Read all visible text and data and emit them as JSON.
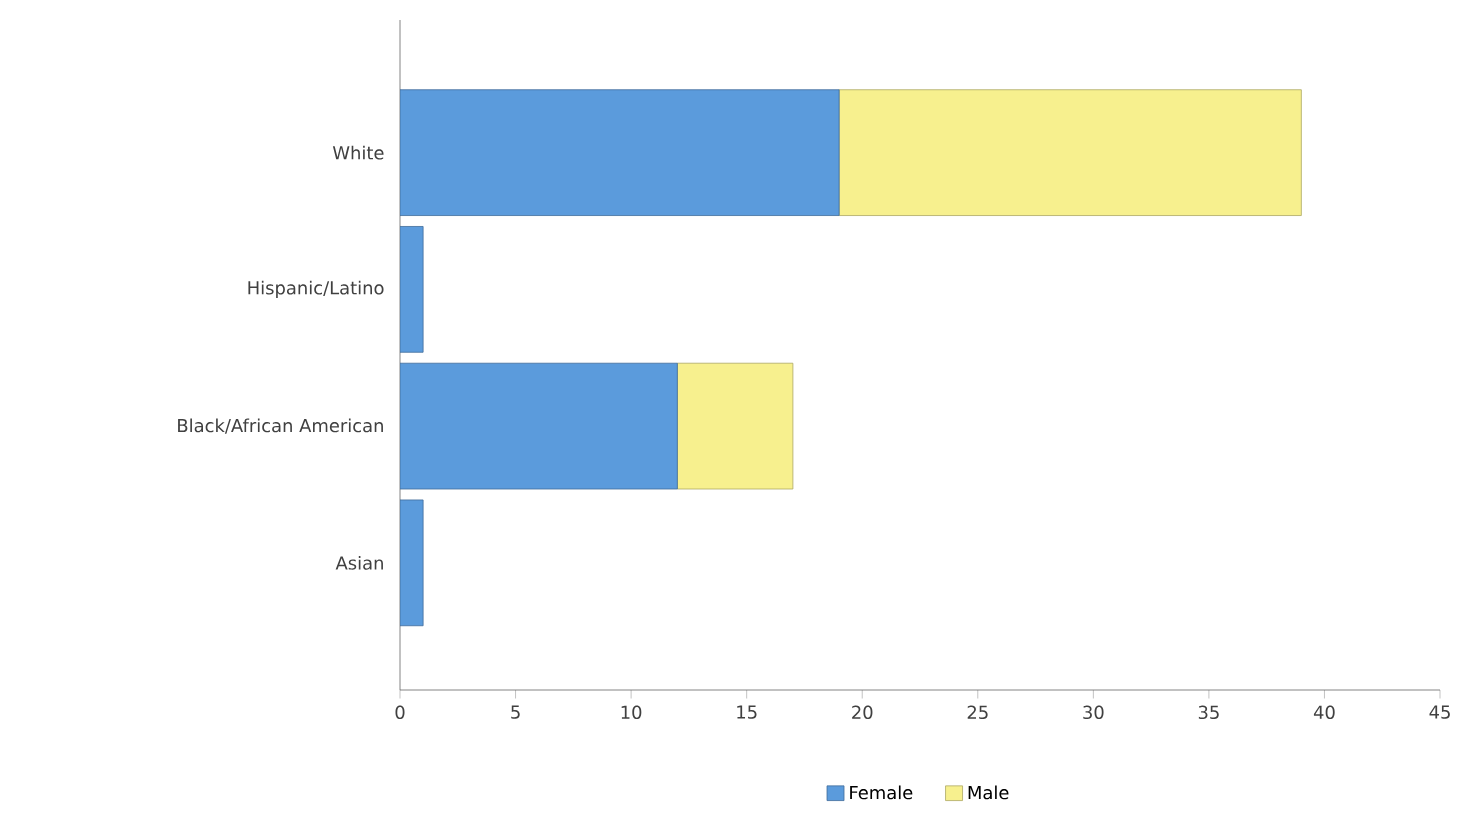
{
  "chart_data": {
    "type": "bar",
    "orientation": "horizontal",
    "stacked": true,
    "categories": [
      "White",
      "Hispanic/Latino",
      "Black/African American",
      "Asian"
    ],
    "series": [
      {
        "name": "Female",
        "color": "#5b9bdc",
        "values": [
          19,
          1,
          12,
          1
        ]
      },
      {
        "name": "Male",
        "color": "#f7f08e",
        "values": [
          20,
          0,
          5,
          0
        ]
      }
    ],
    "xlim": [
      0,
      45
    ],
    "xticks": [
      0,
      5,
      10,
      15,
      20,
      25,
      30,
      35,
      40,
      45
    ],
    "legend": "bottom"
  }
}
